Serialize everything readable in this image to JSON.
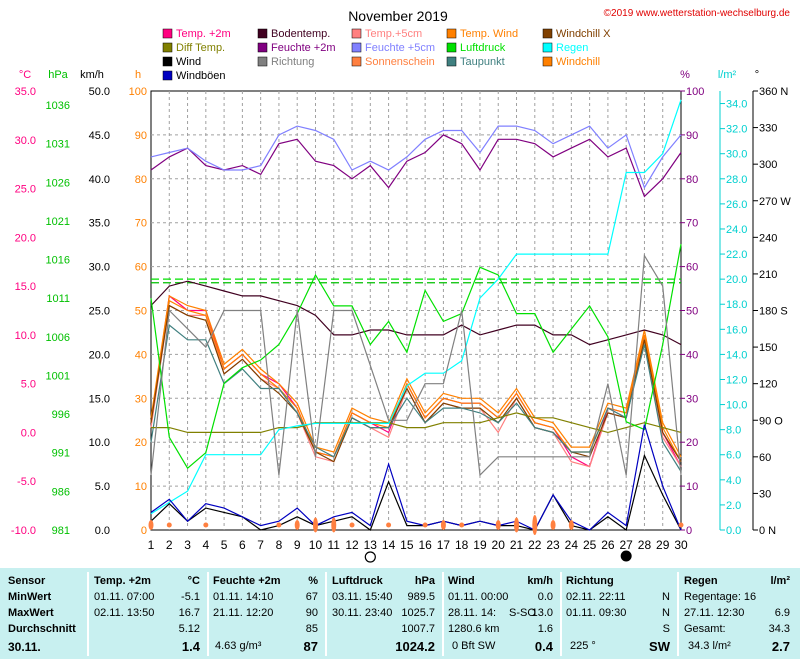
{
  "chart_data": {
    "type": "line",
    "title": "November 2019",
    "copyright": "©2019 www.wetterstation-wechselburg.de",
    "x": [
      1,
      2,
      3,
      4,
      5,
      6,
      7,
      8,
      9,
      10,
      11,
      12,
      13,
      14,
      15,
      16,
      17,
      18,
      19,
      20,
      21,
      22,
      23,
      24,
      25,
      26,
      27,
      28,
      29,
      30
    ],
    "xlim": [
      1,
      30
    ],
    "axes": {
      "temp_c": {
        "label": "°C",
        "ticks": [
          "35.0",
          "30.0",
          "25.0",
          "20.0",
          "15.0",
          "10.0",
          "5.0",
          "0.0",
          "-5.0",
          "-10.0"
        ],
        "range": [
          -10,
          35
        ],
        "color": "#ff0080"
      },
      "pressure_hpa": {
        "label": "hPa",
        "ticks": [
          "1036",
          "1031",
          "1026",
          "1021",
          "1016",
          "1011",
          "1006",
          "1001",
          "996",
          "991",
          "986",
          "981"
        ],
        "color": "#00c000"
      },
      "wind_kmh": {
        "label": "km/h",
        "ticks": [
          "50.0",
          "45.0",
          "40.0",
          "35.0",
          "30.0",
          "25.0",
          "20.0",
          "15.0",
          "10.0",
          "5.0",
          "0.0"
        ],
        "range": [
          0,
          50
        ],
        "color": "#000000"
      },
      "sun_h": {
        "label": "h",
        "ticks": [
          "100",
          "90",
          "80",
          "70",
          "60",
          "50",
          "40",
          "30",
          "20",
          "10",
          "0"
        ],
        "range": [
          0,
          100
        ],
        "color": "#ff8000"
      },
      "humidity_pct": {
        "label": "%",
        "ticks": [
          "100",
          "90",
          "80",
          "70",
          "60",
          "50",
          "40",
          "30",
          "20",
          "10",
          "0"
        ],
        "range": [
          0,
          100
        ],
        "color": "#800080"
      },
      "rain_lm2": {
        "label": "l/m²",
        "ticks": [
          "34.0",
          "32.0",
          "30.0",
          "28.0",
          "26.0",
          "24.0",
          "22.0",
          "20.0",
          "18.0",
          "16.0",
          "14.0",
          "12.0",
          "10.0",
          "8.0",
          "6.0",
          "4.0",
          "2.0",
          "0.0"
        ],
        "range": [
          0,
          35
        ],
        "color": "#00d0d0"
      },
      "direction_deg": {
        "label": "°",
        "ticks": [
          "360 N",
          "330",
          "300",
          "270 W",
          "240",
          "210",
          "180 S",
          "150",
          "120",
          "90 O",
          "60",
          "30",
          "0 N"
        ],
        "range": [
          0,
          360
        ],
        "color": "#000000"
      }
    },
    "legend": [
      {
        "name": "Temp. +2m",
        "color": "#ff0080"
      },
      {
        "name": "Bodentemp.",
        "color": "#400020"
      },
      {
        "name": "Temp.+5cm",
        "color": "#ff8080"
      },
      {
        "name": "Temp. Wind",
        "color": "#ff8000"
      },
      {
        "name": "Windchill X",
        "color": "#804000"
      },
      {
        "name": "Diff Temp.",
        "color": "#808000"
      },
      {
        "name": "Feuchte +2m",
        "color": "#800080"
      },
      {
        "name": "Feuchte +5cm",
        "color": "#8080ff"
      },
      {
        "name": "Luftdruck",
        "color": "#00e000"
      },
      {
        "name": "Regen",
        "color": "#00ffff"
      },
      {
        "name": "Wind",
        "color": "#000000"
      },
      {
        "name": "Richtung",
        "color": "#808080"
      },
      {
        "name": "Sonnenschein",
        "color": "#ff8040"
      },
      {
        "name": "Taupunkt",
        "color": "#408080"
      },
      {
        "name": "Windchill",
        "color": "#ff8000"
      },
      {
        "name": "Windböen",
        "color": "#0000c0"
      }
    ],
    "series": [
      {
        "name": "Temp. +2m",
        "axis": "temp_c",
        "color": "#ff0080",
        "values": [
          1,
          14,
          12.5,
          12.5,
          6.5,
          8,
          6,
          5,
          2.5,
          -2,
          -2.5,
          2,
          1,
          0,
          5,
          1.5,
          3.5,
          3,
          3,
          1.5,
          4,
          1,
          0.5,
          -2.5,
          -3.5,
          2.5,
          2,
          10,
          0,
          -3.5
        ]
      },
      {
        "name": "Temp.+5cm",
        "axis": "temp_c",
        "color": "#ff8080",
        "values": [
          0.5,
          13,
          12,
          12,
          6,
          7.5,
          5.5,
          4.5,
          2,
          -2.5,
          -3,
          1.5,
          0.5,
          -0.5,
          4.5,
          1,
          3,
          2.5,
          2.5,
          0,
          3.5,
          0.5,
          0,
          -3,
          -3.5,
          2,
          1.5,
          9.5,
          -0.5,
          -3.5
        ]
      },
      {
        "name": "Temp. Wind",
        "axis": "temp_c",
        "color": "#ff8000",
        "values": [
          1.5,
          14,
          13,
          12.5,
          7,
          8.5,
          6.5,
          5,
          3,
          -1.5,
          -2,
          2.5,
          1.5,
          1,
          5.5,
          2,
          4,
          3.5,
          3.5,
          2,
          4.5,
          1.5,
          1,
          -1.5,
          -1.5,
          3,
          2.5,
          10.5,
          1,
          -2.5
        ]
      },
      {
        "name": "Windchill",
        "axis": "temp_c",
        "color": "#ff8000",
        "values": [
          1,
          13.5,
          12.5,
          12,
          6.5,
          8,
          6,
          4.5,
          2.5,
          -2,
          -2.5,
          2,
          1,
          0.5,
          5,
          1.5,
          3.5,
          3,
          3,
          1.5,
          4,
          1,
          0.5,
          -2,
          -2,
          2.5,
          2,
          10,
          0.5,
          -3
        ]
      },
      {
        "name": "Windchill X",
        "axis": "temp_c",
        "color": "#804000",
        "values": [
          1,
          13,
          12,
          11.5,
          6,
          7.5,
          5.5,
          4,
          2,
          -2,
          -3,
          1.5,
          0.5,
          0.5,
          4.5,
          1,
          3,
          2.5,
          2.5,
          1,
          3.5,
          0.5,
          0,
          -2,
          -2.5,
          2,
          1.5,
          9.5,
          0,
          -3
        ]
      },
      {
        "name": "Taupunkt",
        "axis": "temp_c",
        "color": "#408080",
        "values": [
          -1,
          11,
          9.5,
          9.5,
          5,
          6.5,
          4.5,
          4.5,
          2,
          -1.5,
          -2.5,
          1.5,
          0.5,
          0.5,
          3.5,
          1,
          2.5,
          2.5,
          2,
          1,
          3,
          0.5,
          0,
          -2,
          -2,
          2.5,
          1.5,
          9,
          -1,
          -4
        ]
      },
      {
        "name": "Bodentemp.",
        "axis": "temp_c",
        "color": "#400020",
        "values": [
          13,
          15,
          15.5,
          15,
          14.5,
          14,
          14,
          13.5,
          13,
          12,
          10,
          10,
          10.5,
          10.5,
          10,
          10,
          10,
          11,
          10,
          10.5,
          11,
          11,
          10,
          10,
          9,
          9.5,
          10,
          10.5,
          10,
          9
        ]
      },
      {
        "name": "Diff Temp.",
        "axis": "temp_c",
        "color": "#808000",
        "values": [
          0.5,
          0.5,
          0,
          0,
          0,
          0,
          0,
          0.5,
          0.5,
          1,
          1,
          1,
          1,
          1,
          0.5,
          0.5,
          1,
          1,
          1,
          1.5,
          2,
          1.5,
          1.5,
          1,
          0.5,
          0,
          0.5,
          1,
          0.5,
          0
        ]
      },
      {
        "name": "Feuchte +2m",
        "axis": "humidity_pct",
        "color": "#800080",
        "values": [
          82,
          85,
          87,
          83,
          82,
          83,
          81,
          88,
          89,
          84,
          83,
          80,
          83,
          78,
          84,
          86,
          90,
          88,
          82,
          89,
          89,
          88,
          85,
          87,
          89,
          85,
          87,
          76,
          80,
          86
        ]
      },
      {
        "name": "Feuchte +5cm",
        "axis": "humidity_pct",
        "color": "#8080ff",
        "values": [
          85,
          86,
          87,
          84,
          82,
          82,
          83,
          90,
          92,
          91,
          89,
          82,
          84,
          82,
          85,
          89,
          91,
          91,
          86,
          92,
          92,
          91,
          88,
          90,
          92,
          87,
          90,
          78,
          85,
          90
        ]
      },
      {
        "name": "Luftdruck",
        "axis": "pressure_hpa",
        "color": "#00e000",
        "values": [
          1011,
          993,
          989,
          991,
          1000,
          1002,
          1003,
          1005,
          1009,
          1014,
          1010,
          1010,
          1005,
          1008,
          1004,
          1012,
          1008,
          1009,
          1015,
          1014,
          1009,
          1009,
          1004,
          1007,
          1010,
          1006,
          995,
          994,
          1005,
          1018
        ]
      },
      {
        "name": "Regen",
        "axis": "rain_lm2",
        "color": "#00ffff",
        "values": [
          1.3,
          2.2,
          3.1,
          6.0,
          6.0,
          6.0,
          6.0,
          8.0,
          8.3,
          8.5,
          8.5,
          8.5,
          8.5,
          8.5,
          11.5,
          12.5,
          12.5,
          13.5,
          18.5,
          20,
          22,
          22,
          22,
          22,
          22,
          22,
          28.5,
          28.5,
          30.0,
          34.3
        ]
      },
      {
        "name": "Wind",
        "axis": "wind_kmh",
        "color": "#000000",
        "values": [
          1,
          3,
          1,
          2.5,
          2,
          1.5,
          0,
          0.5,
          1.5,
          0.5,
          1,
          1.5,
          0,
          5.5,
          0.5,
          0.5,
          1,
          0.5,
          1,
          0.5,
          0.5,
          0,
          4,
          0.5,
          0,
          1.5,
          0,
          8.5,
          4,
          0
        ]
      },
      {
        "name": "Windböen",
        "axis": "wind_kmh",
        "color": "#0000c0",
        "values": [
          2,
          3.5,
          1,
          3,
          2.5,
          1.5,
          0.5,
          1,
          2.5,
          0.5,
          1.5,
          2,
          0.5,
          7.5,
          1,
          0.5,
          1,
          0.5,
          1,
          0.5,
          1,
          0,
          4,
          1,
          0,
          2,
          0.5,
          12,
          5,
          0
        ]
      },
      {
        "name": "Richtung",
        "axis": "direction_deg",
        "color": "#808080",
        "values": [
          45,
          180,
          165,
          150,
          180,
          180,
          180,
          45,
          180,
          60,
          180,
          180,
          135,
          90,
          90,
          120,
          120,
          180,
          45,
          60,
          60,
          60,
          60,
          60,
          60,
          120,
          45,
          225,
          200,
          45
        ]
      },
      {
        "name": "Sonnenschein",
        "axis": "sun_h",
        "color": "#ff8040",
        "values": [
          2,
          1,
          0,
          1,
          0,
          0,
          0,
          1,
          2,
          3,
          3,
          1,
          0,
          1,
          0,
          1,
          2,
          1,
          0,
          2,
          3,
          4,
          2,
          2,
          0,
          0,
          0,
          0,
          0,
          1
        ]
      }
    ],
    "ref_lines": {
      "pressure_hpa": [
        1013
      ],
      "rain_lm2": [
        20.0
      ]
    },
    "grid": true,
    "symbols": {
      "full_moon_day": 13,
      "new_moon_day": 27
    }
  },
  "table": {
    "date": "30.11.",
    "row_labels": [
      "Sensor",
      "MinWert",
      "MaxWert",
      "Durchschnitt"
    ],
    "temp": {
      "header": "Temp. +2m",
      "unit": "°C",
      "min_time": "01.11.  07:00",
      "min": "-5.1",
      "max_time": "02.11.  13:50",
      "max": "16.7",
      "avg": "5.12",
      "current": "1.4"
    },
    "humidity": {
      "header": "Feuchte +2m",
      "unit": "%",
      "min_time": "01.11.  14:10",
      "min": "67",
      "max_time": "21.11.  12:20",
      "max": "90",
      "avg": "85",
      "abs": "4.63 g/m³",
      "current": "87"
    },
    "pressure": {
      "header": "Luftdruck",
      "unit": "hPa",
      "min_time": "03.11.  15:40",
      "min": "989.5",
      "max_time": "30.11.  23:40",
      "max": "1025.7",
      "avg": "1007.7",
      "current": "1024.2"
    },
    "wind": {
      "header": "Wind",
      "unit": "km/h",
      "min_time": "01.11.  00:00",
      "min": "0.0",
      "max_time": "28.11.  14:",
      "max_dir": "S-SO",
      "max": "13.0",
      "distance": "1280.6 km",
      "avg": "1.6",
      "bft": "0 Bft SW",
      "current": "0.4"
    },
    "direction": {
      "header": "Richtung",
      "min_time": "02.11.  22:11",
      "min": "N",
      "max_time": "01.11.  09:30",
      "max": "N",
      "avg": "S",
      "current_deg": "225 °",
      "current": "SW"
    },
    "rain": {
      "header": "Regen",
      "unit": "l/m²",
      "days": "Regentage: 16",
      "max_time": "27.11.  12:30",
      "max": "6.9",
      "total_label": "Gesamt:",
      "total": "34.3",
      "current_total": "34.3 l/m²",
      "current": "2.7"
    }
  }
}
